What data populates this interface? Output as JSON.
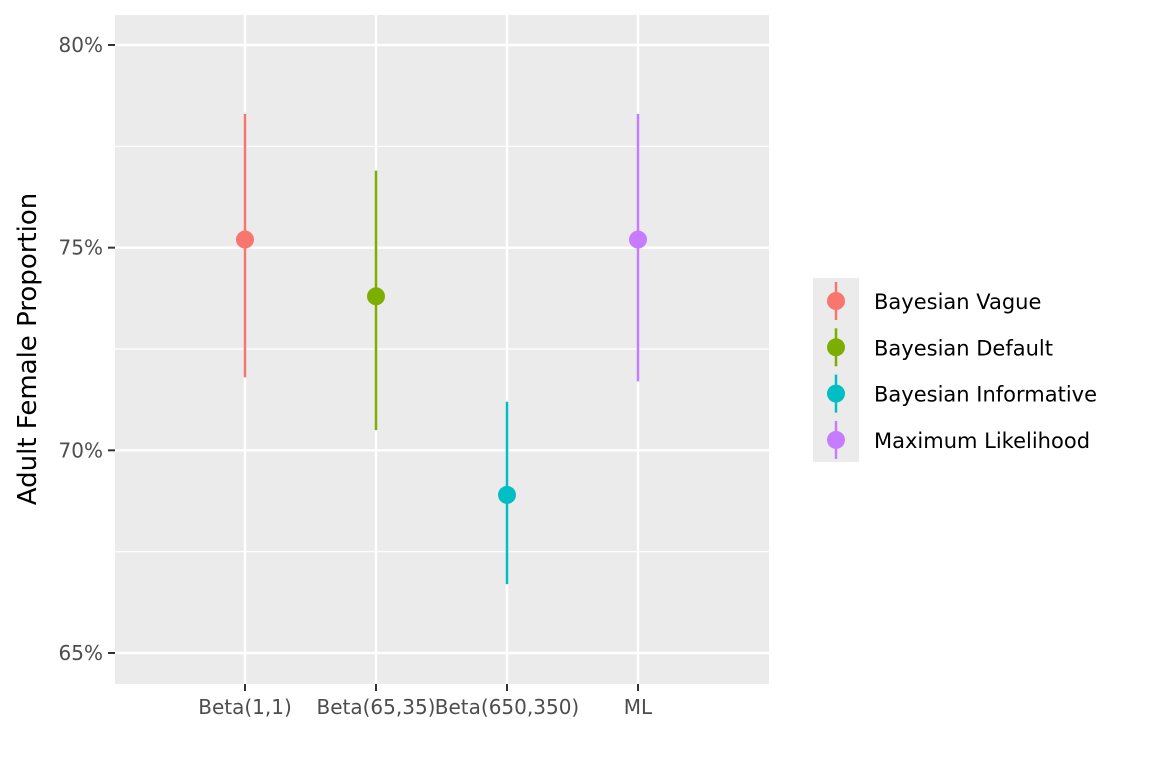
{
  "chart_data": {
    "type": "scatter",
    "subtype": "pointrange",
    "title": "",
    "xlabel": "",
    "ylabel": "Adult Female Proportion",
    "categories": [
      "Beta(1,1)",
      "Beta(65,35)",
      "Beta(650,350)",
      "ML"
    ],
    "yticks": [
      "65%",
      "70%",
      "75%",
      "80%"
    ],
    "ytick_values": [
      0.65,
      0.7,
      0.75,
      0.8
    ],
    "ylim": [
      0.6425,
      0.8075
    ],
    "grid": true,
    "legend_position": "right",
    "series": [
      {
        "name": "Bayesian Vague",
        "category": "Beta(1,1)",
        "estimate": 0.752,
        "lower": 0.718,
        "upper": 0.783,
        "color": "#F8766D"
      },
      {
        "name": "Bayesian Default",
        "category": "Beta(65,35)",
        "estimate": 0.738,
        "lower": 0.705,
        "upper": 0.769,
        "color": "#7CAE00"
      },
      {
        "name": "Bayesian Informative",
        "category": "Beta(650,350)",
        "estimate": 0.689,
        "lower": 0.667,
        "upper": 0.712,
        "color": "#00BFC4"
      },
      {
        "name": "Maximum Likelihood",
        "category": "ML",
        "estimate": 0.752,
        "lower": 0.717,
        "upper": 0.783,
        "color": "#C77CFF"
      }
    ],
    "colors": {
      "panel_background": "#EBEBEB",
      "grid_major": "#FFFFFF",
      "tick_text": "#4D4D4D",
      "tick_mark": "#333333"
    }
  }
}
